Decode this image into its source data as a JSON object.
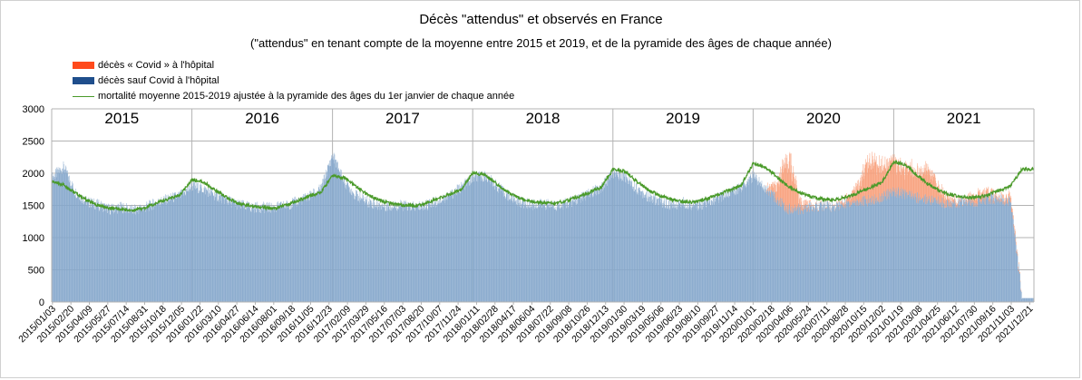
{
  "title": "Décès \"attendus\" et observés en France",
  "subtitle": "(\"attendus\" en tenant compte de la moyenne entre 2015 et 2019, et de la pyramide des âges de chaque année)",
  "legend": [
    {
      "label": "décès « Covid » à l'hôpital",
      "color": "#ff4a1c",
      "kind": "bar"
    },
    {
      "label": "décès sauf Covid à l'hôpital",
      "color": "#1f4e8c",
      "kind": "bar"
    },
    {
      "label": "mortalité moyenne 2015-2019 ajustée à la pyramide des âges du 1er janvier de chaque année",
      "color": "#4a9a2a",
      "kind": "line"
    }
  ],
  "chart_data": {
    "type": "bar",
    "title": "Décès \"attendus\" et observés en France",
    "subtitle": "(\"attendus\" en tenant compte de la moyenne entre 2015 et 2019, et de la pyramide des âges de chaque année)",
    "x_start": "2015-01-01",
    "x_end": "2021-12-31",
    "ylim": [
      0,
      3000
    ],
    "yticks": [
      0,
      500,
      1000,
      1500,
      2000,
      2500,
      3000
    ],
    "grid": true,
    "legend_position": "top-left",
    "year_labels": [
      "2015",
      "2016",
      "2017",
      "2018",
      "2019",
      "2020",
      "2021"
    ],
    "xtick_labels": [
      "2015/01/03",
      "2015/02/20",
      "2015/04/09",
      "2015/05/27",
      "2015/07/14",
      "2015/08/31",
      "2015/10/18",
      "2015/12/05",
      "2016/01/22",
      "2016/03/10",
      "2016/04/27",
      "2016/06/14",
      "2016/08/01",
      "2016/09/18",
      "2016/11/05",
      "2016/12/23",
      "2017/02/09",
      "2017/03/29",
      "2017/05/16",
      "2017/07/03",
      "2017/08/20",
      "2017/10/07",
      "2017/11/24",
      "2018/01/11",
      "2018/02/28",
      "2018/04/17",
      "2018/06/04",
      "2018/07/22",
      "2018/09/08",
      "2018/10/26",
      "2018/12/13",
      "2019/01/30",
      "2019/03/19",
      "2019/05/06",
      "2019/06/23",
      "2019/08/10",
      "2019/09/27",
      "2019/11/14",
      "2020/01/01",
      "2020/02/18",
      "2020/04/06",
      "2020/05/24",
      "2020/07/11",
      "2020/08/28",
      "2020/10/15",
      "2020/12/02",
      "2021/01/19",
      "2021/03/08",
      "2021/04/25",
      "2021/06/12",
      "2021/07/30",
      "2021/09/16",
      "2021/11/03",
      "2021/12/21"
    ],
    "series": [
      {
        "name": "décès sauf Covid à l'hôpital",
        "color": "#1f4e8c",
        "approx_monthly_values": {
          "2015": [
            1930,
            2100,
            1720,
            1560,
            1510,
            1440,
            1470,
            1420,
            1470,
            1540,
            1600,
            1650
          ],
          "2016": [
            1800,
            1750,
            1660,
            1580,
            1510,
            1470,
            1470,
            1460,
            1500,
            1560,
            1640,
            1750
          ],
          "2017": [
            2280,
            1870,
            1660,
            1560,
            1500,
            1490,
            1500,
            1470,
            1500,
            1570,
            1650,
            1780
          ],
          "2018": [
            1920,
            1960,
            1820,
            1650,
            1560,
            1510,
            1520,
            1500,
            1530,
            1600,
            1680,
            1780
          ],
          "2019": [
            2000,
            1950,
            1780,
            1640,
            1560,
            1500,
            1550,
            1500,
            1530,
            1610,
            1700,
            1790
          ],
          "2020": [
            1960,
            1780,
            1600,
            1450,
            1440,
            1470,
            1500,
            1480,
            1540,
            1560,
            1580,
            1620
          ],
          "2021": [
            1720,
            1680,
            1620,
            1600,
            1560,
            1510,
            1560,
            1560,
            1600,
            1600,
            1560,
            60
          ]
        }
      },
      {
        "name": "décès « Covid » à l'hôpital",
        "color": "#ff4a1c",
        "approx_monthly_values": {
          "2020": [
            0,
            0,
            200,
            850,
            120,
            20,
            10,
            10,
            60,
            280,
            650,
            480
          ],
          "2021": [
            450,
            380,
            420,
            440,
            200,
            60,
            20,
            120,
            100,
            40,
            80,
            0
          ]
        }
      },
      {
        "name": "mortalité moyenne 2015-2019 ajustée à la pyramide des âges du 1er janvier de chaque année",
        "color": "#4a9a2a",
        "kind": "line",
        "approx_monthly_values": {
          "2015": [
            1870,
            1820,
            1700,
            1590,
            1500,
            1460,
            1440,
            1420,
            1460,
            1540,
            1600,
            1660
          ],
          "2016": [
            1900,
            1860,
            1740,
            1620,
            1530,
            1490,
            1470,
            1450,
            1500,
            1570,
            1640,
            1700
          ],
          "2017": [
            1960,
            1930,
            1800,
            1670,
            1580,
            1530,
            1510,
            1490,
            1530,
            1600,
            1670,
            1740
          ],
          "2018": [
            2000,
            1980,
            1850,
            1710,
            1620,
            1560,
            1540,
            1530,
            1570,
            1630,
            1700,
            1780
          ],
          "2019": [
            2060,
            2030,
            1890,
            1750,
            1660,
            1590,
            1560,
            1550,
            1600,
            1670,
            1740,
            1810
          ],
          "2020": [
            2150,
            2100,
            1950,
            1800,
            1700,
            1630,
            1600,
            1590,
            1630,
            1700,
            1780,
            1850
          ],
          "2021": [
            2180,
            2130,
            1980,
            1830,
            1730,
            1660,
            1630,
            1620,
            1660,
            1730,
            1800,
            2060
          ]
        }
      }
    ]
  }
}
